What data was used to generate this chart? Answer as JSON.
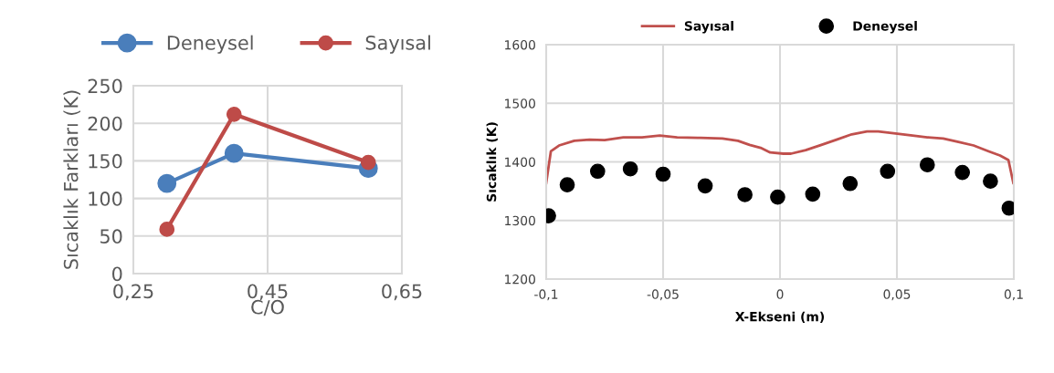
{
  "chart_data": [
    {
      "type": "line",
      "xlabel": "C/O",
      "ylabel": "Sıcaklık Farkları (K)",
      "x": [
        0.3,
        0.4,
        0.6
      ],
      "series": [
        {
          "name": "Deneysel",
          "color": "#4a7ebb",
          "values": [
            120,
            160,
            140
          ]
        },
        {
          "name": "Sayısal",
          "color": "#be4b48",
          "values": [
            59,
            212,
            148
          ]
        }
      ],
      "xlim": [
        0.25,
        0.65
      ],
      "xticks": [
        {
          "value": 0.25,
          "label": "0,25"
        },
        {
          "value": 0.45,
          "label": "0,45"
        },
        {
          "value": 0.65,
          "label": "0,65"
        }
      ],
      "ylim": [
        0,
        250
      ],
      "yticks": [
        0,
        50,
        100,
        150,
        200,
        250
      ],
      "grid": true,
      "legend": "top",
      "marker": "circle",
      "line_style": "solid"
    },
    {
      "type": "line",
      "xlabel": "X-Ekseni (m)",
      "ylabel": "Sıcaklık (K)",
      "series": [
        {
          "name": "Sayısal",
          "type": "line",
          "color": "#c0504d",
          "marker": "none",
          "x": [
            -0.1,
            -0.098,
            -0.0945,
            -0.088,
            -0.0815,
            -0.075,
            -0.067,
            -0.059,
            -0.0514,
            -0.044,
            -0.034,
            -0.0246,
            -0.018,
            -0.013,
            -0.0083,
            -0.0042,
            0.0015,
            0.0047,
            0.011,
            0.0177,
            0.0242,
            0.0307,
            0.0372,
            0.042,
            0.0486,
            0.0567,
            0.063,
            0.0698,
            0.0763,
            0.0828,
            0.0893,
            0.0941,
            0.0977,
            0.0998
          ],
          "values": [
            1364,
            1418,
            1428,
            1436,
            1438,
            1437,
            1442,
            1442,
            1445,
            1442,
            1441,
            1440,
            1436,
            1429,
            1424,
            1416,
            1414,
            1414,
            1420,
            1429,
            1438,
            1447,
            1452,
            1452,
            1449,
            1445,
            1442,
            1440,
            1434,
            1428,
            1418,
            1411,
            1403,
            1364
          ]
        },
        {
          "name": "Deneysel",
          "type": "scatter",
          "color": "#000000",
          "marker": "circle",
          "x": [
            -0.099,
            -0.091,
            -0.078,
            -0.064,
            -0.05,
            -0.032,
            -0.015,
            -0.001,
            0.014,
            0.03,
            0.046,
            0.063,
            0.078,
            0.09,
            0.098
          ],
          "values": [
            1308,
            1361,
            1384,
            1388,
            1379,
            1359,
            1344,
            1340,
            1345,
            1363,
            1384,
            1395,
            1382,
            1367,
            1321
          ]
        }
      ],
      "xlim": [
        -0.1,
        0.1
      ],
      "xticks": [
        {
          "value": -0.1,
          "label": "-0,1"
        },
        {
          "value": -0.05,
          "label": "-0,05"
        },
        {
          "value": 0,
          "label": "0"
        },
        {
          "value": 0.05,
          "label": "0,05"
        },
        {
          "value": 0.1,
          "label": "0,1"
        }
      ],
      "ylim": [
        1200,
        1600
      ],
      "yticks": [
        1200,
        1300,
        1400,
        1500,
        1600
      ],
      "grid": true,
      "legend": "top"
    }
  ]
}
